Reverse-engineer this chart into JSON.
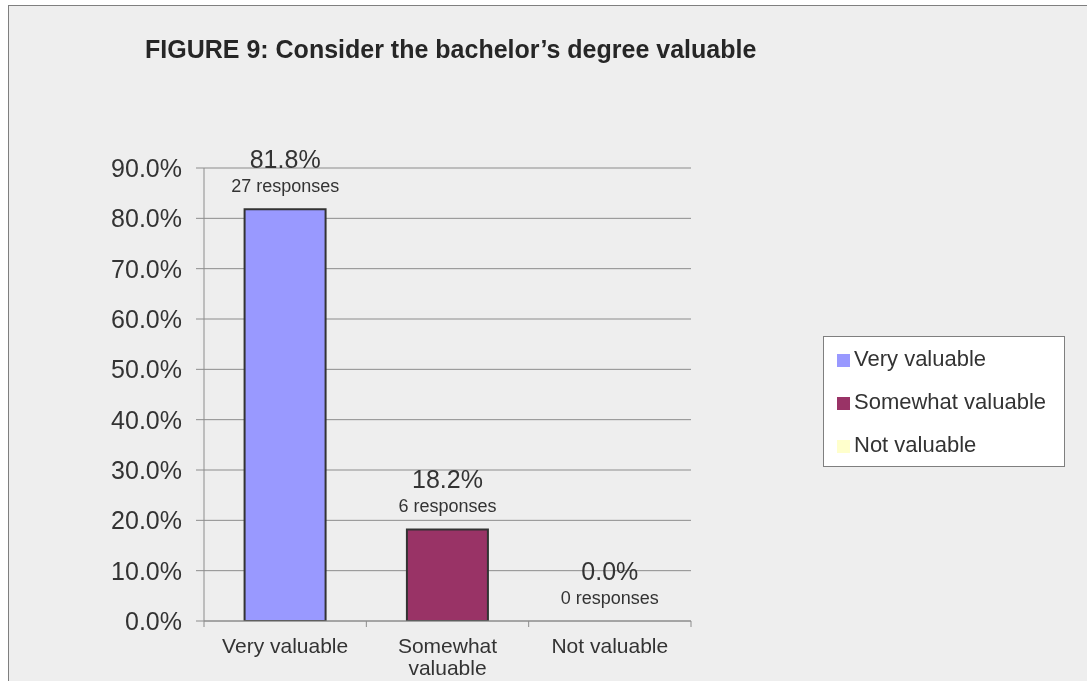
{
  "chart_data": {
    "type": "bar",
    "title": "FIGURE 9: Consider the bachelor’s degree valuable",
    "categories": [
      "Very valuable",
      "Somewhat valuable",
      "Not valuable"
    ],
    "stacked": true,
    "series": [
      {
        "name": "Very valuable",
        "color": "#9999ff",
        "values": [
          81.8,
          null,
          null
        ],
        "value_labels": [
          "81.8%",
          null,
          null
        ]
      },
      {
        "name": "Somewhat valuable",
        "color": "#993366",
        "values": [
          null,
          18.2,
          null
        ],
        "value_labels": [
          null,
          "18.2%",
          null
        ]
      },
      {
        "name": "Not valuable",
        "color": "#ffffcc",
        "values": [
          null,
          null,
          0.0
        ],
        "value_labels": [
          null,
          null,
          "0.0%"
        ]
      }
    ],
    "ylim": [
      0,
      90
    ],
    "yticks": [
      {
        "value": 0,
        "label": "0.0%"
      },
      {
        "value": 10,
        "label": "10.0%"
      },
      {
        "value": 20,
        "label": "20.0%"
      },
      {
        "value": 30,
        "label": "30.0%"
      },
      {
        "value": 40,
        "label": "40.0%"
      },
      {
        "value": 50,
        "label": "50.0%"
      },
      {
        "value": 60,
        "label": "60.0%"
      },
      {
        "value": 70,
        "label": "70.0%"
      },
      {
        "value": 80,
        "label": "80.0%"
      },
      {
        "value": 90,
        "label": "90.0%"
      }
    ],
    "grid": "y",
    "legend": "right",
    "annotations": [
      {
        "text": "27 responses",
        "x": "Very valuable",
        "y": 81.8
      },
      {
        "text": "6 responses",
        "x": "Somewhat valuable",
        "y": 18.2
      },
      {
        "text": "0 responses",
        "x": "Not valuable",
        "y": 0
      }
    ]
  }
}
